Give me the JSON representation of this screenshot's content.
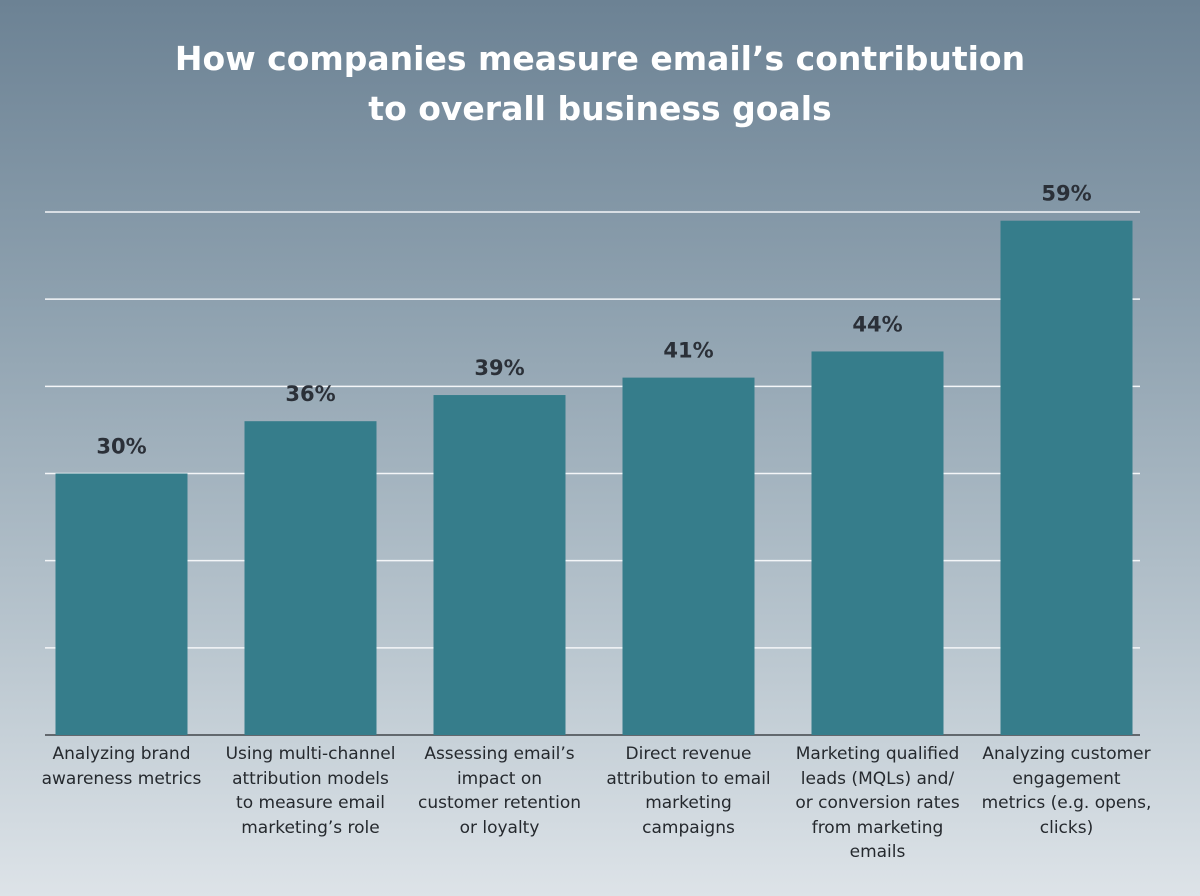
{
  "chart_data": {
    "type": "bar",
    "title": "How companies measure email’s contribution to overall business goals",
    "categories": [
      "Analyzing brand awareness metrics",
      "Using multi-channel attribution models to measure email marketing’s role",
      "Assessing email’s impact on customer retention or loyalty",
      "Direct revenue attribution to email marketing campaigns",
      "Marketing qualified leads (MQLs) and/ or conversion rates from marketing emails",
      "Analyzing customer engagement metrics (e.g. opens, clicks)"
    ],
    "values": [
      30,
      36,
      39,
      41,
      44,
      59
    ],
    "value_labels": [
      "30%",
      "36%",
      "39%",
      "41%",
      "44%",
      "59%"
    ],
    "color": "#367d8b",
    "ylim": [
      0,
      60
    ],
    "yticks": [
      0,
      10,
      20,
      30,
      40,
      50,
      60
    ],
    "grid": true
  }
}
